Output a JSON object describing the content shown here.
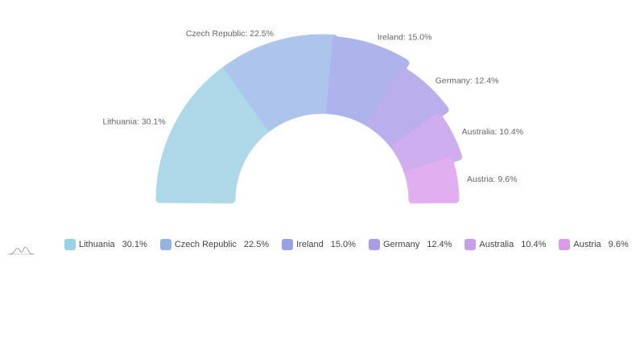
{
  "chart_data": {
    "type": "pie",
    "variant": "semicircle-donut",
    "title": "",
    "slices": [
      {
        "name": "Lithuania",
        "value": 30.1,
        "label": "Lithuania: 30.1%",
        "value_label": "30.1%",
        "color": "#add8e8"
      },
      {
        "name": "Czech Republic",
        "value": 22.5,
        "label": "Czech Republic: 22.5%",
        "value_label": "22.5%",
        "color": "#adc4ec"
      },
      {
        "name": "Ireland",
        "value": 15.0,
        "label": "Ireland: 15.0%",
        "value_label": "15.0%",
        "color": "#adb4ec"
      },
      {
        "name": "Germany",
        "value": 12.4,
        "label": "Germany: 12.4%",
        "value_label": "12.4%",
        "color": "#bbaeed"
      },
      {
        "name": "Australia",
        "value": 10.4,
        "label": "Australia: 10.4%",
        "value_label": "10.4%",
        "color": "#ceaeee"
      },
      {
        "name": "Austria",
        "value": 9.6,
        "label": "Austria: 9.6%",
        "value_label": "9.6%",
        "color": "#e1aeef"
      }
    ],
    "legend_placement": "bottom-left",
    "legend_colors": [
      "#98d0e6",
      "#93b3e5",
      "#9a9fe8",
      "#ae9be8",
      "#c79ee9",
      "#db9be9"
    ]
  },
  "icons": {
    "logo": "amcharts-logo-icon"
  }
}
